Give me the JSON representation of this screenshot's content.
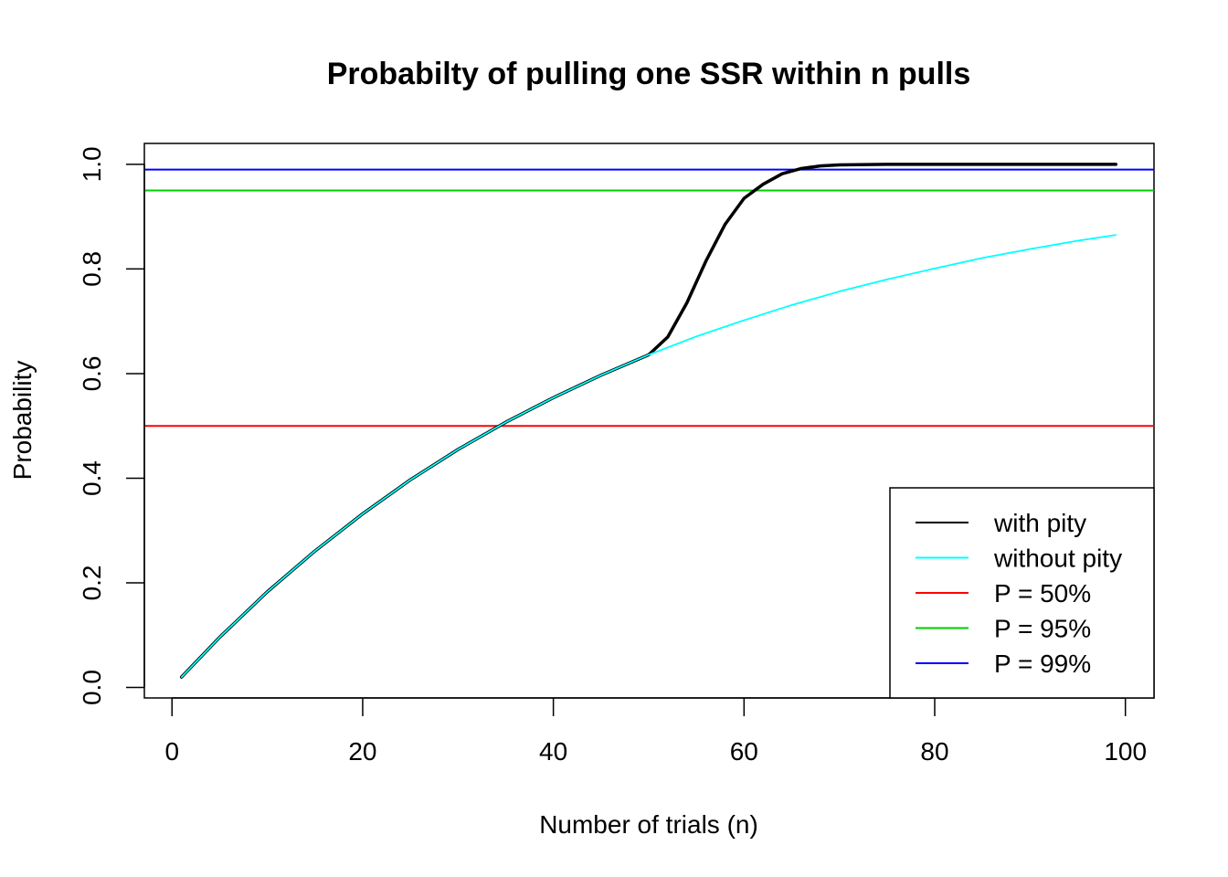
{
  "chart_data": {
    "type": "line",
    "title": "Probabilty of pulling one SSR within n pulls",
    "xlabel": "Number of trials (n)",
    "ylabel": "Probability",
    "xlim": [
      -2.9,
      103
    ],
    "ylim": [
      -0.02,
      1.04
    ],
    "x_ticks": [
      0,
      20,
      40,
      60,
      80,
      100
    ],
    "y_ticks": [
      0.0,
      0.2,
      0.4,
      0.6,
      0.8,
      1.0
    ],
    "x_tick_labels": [
      "0",
      "20",
      "40",
      "60",
      "80",
      "100"
    ],
    "y_tick_labels": [
      "0.0",
      "0.2",
      "0.4",
      "0.6",
      "0.8",
      "1.0"
    ],
    "grid": false,
    "legend_position": "bottom-right",
    "series": [
      {
        "name": "with pity",
        "color": "#000000",
        "line_width": "thick",
        "x": [
          1,
          5,
          10,
          15,
          20,
          25,
          30,
          35,
          40,
          45,
          50,
          52,
          54,
          56,
          58,
          60,
          62,
          64,
          66,
          68,
          70,
          75,
          80,
          85,
          90,
          95,
          99
        ],
        "y": [
          0.02,
          0.096,
          0.183,
          0.261,
          0.332,
          0.397,
          0.455,
          0.507,
          0.554,
          0.597,
          0.636,
          0.67,
          0.735,
          0.815,
          0.885,
          0.935,
          0.962,
          0.982,
          0.992,
          0.997,
          0.999,
          1.0,
          1.0,
          1.0,
          1.0,
          1.0,
          1.0
        ]
      },
      {
        "name": "without pity",
        "color": "#00ffff",
        "line_width": "thin",
        "x": [
          1,
          5,
          10,
          15,
          20,
          25,
          30,
          35,
          40,
          45,
          50,
          55,
          60,
          65,
          70,
          75,
          80,
          85,
          90,
          95,
          99
        ],
        "y": [
          0.02,
          0.096,
          0.183,
          0.261,
          0.332,
          0.397,
          0.455,
          0.507,
          0.554,
          0.597,
          0.636,
          0.671,
          0.702,
          0.731,
          0.757,
          0.78,
          0.801,
          0.821,
          0.838,
          0.854,
          0.865
        ]
      }
    ],
    "hlines": [
      {
        "name": "P = 50%",
        "y": 0.5,
        "color": "#ff0000"
      },
      {
        "name": "P = 95%",
        "y": 0.95,
        "color": "#00cd00"
      },
      {
        "name": "P = 99%",
        "y": 0.99,
        "color": "#0000ff"
      }
    ],
    "legend": [
      {
        "label": "with pity",
        "color": "#000000"
      },
      {
        "label": "without pity",
        "color": "#00ffff"
      },
      {
        "label": "P = 50%",
        "color": "#ff0000"
      },
      {
        "label": "P = 95%",
        "color": "#00cd00"
      },
      {
        "label": "P = 99%",
        "color": "#0000ff"
      }
    ]
  }
}
